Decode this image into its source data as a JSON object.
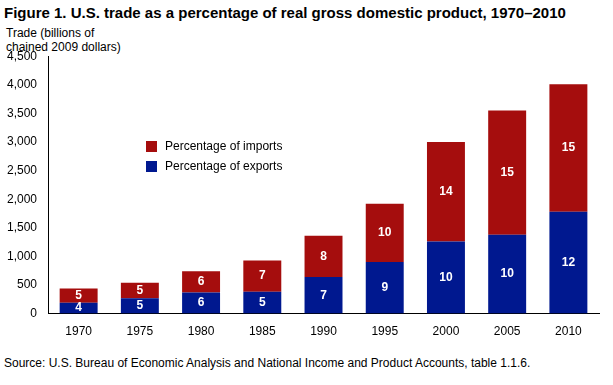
{
  "chart_data": {
    "type": "bar",
    "title": "Figure 1. U.S. trade as a percentage of real gross domestic product, 1970–2010",
    "y_label": "Trade (billions of chained 2009 dollars)",
    "note": "Source: U.S. Bureau of Economic Analysis and National Income and Product Accounts, table 1.1.6.",
    "categories": [
      "1970",
      "1975",
      "1980",
      "1985",
      "1990",
      "1995",
      "2000",
      "2005",
      "2010"
    ],
    "series": [
      {
        "name": "Percentage of exports",
        "color": "#00188f",
        "values": [
          190,
          270,
          370,
          380,
          640,
          900,
          1260,
          1380,
          1780
        ],
        "percentages": [
          4,
          5,
          6,
          5,
          7,
          9,
          10,
          10,
          12
        ]
      },
      {
        "name": "Percentage of imports",
        "color": "#a50d0d",
        "values": [
          250,
          270,
          370,
          550,
          720,
          1020,
          1740,
          2170,
          2230
        ],
        "percentages": [
          5,
          5,
          6,
          7,
          8,
          10,
          14,
          15,
          15
        ]
      }
    ],
    "stacked": true,
    "grid": false,
    "legend": "upper left",
    "ylim": [
      0,
      4500
    ],
    "yticks": [
      0,
      500,
      {
        "value": 1000,
        "label": "1,000"
      },
      {
        "value": 1500,
        "label": "1,500"
      },
      {
        "value": 2000,
        "label": "2,000"
      },
      {
        "value": 2500,
        "label": "2,500"
      },
      {
        "value": 3000,
        "label": "3,000"
      },
      {
        "value": 3500,
        "label": "3,500"
      },
      {
        "value": 4000,
        "label": "4,000"
      },
      {
        "value": 4500,
        "label": "4,500"
      }
    ]
  }
}
